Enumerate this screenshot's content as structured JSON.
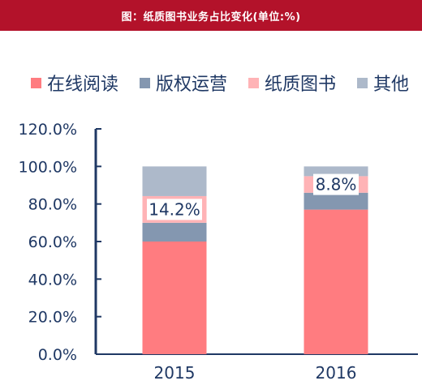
{
  "title": "图：纸质图书业务占比变化(单位:%)",
  "colors": {
    "title_bg": "#b3122a",
    "text": "#1f3864",
    "axis": "#1f3864",
    "label_box": "#ffffff"
  },
  "chart_data": {
    "type": "bar",
    "stacked": true,
    "title": "图：纸质图书业务占比变化(单位:%)",
    "xlabel": "",
    "ylabel": "",
    "categories": [
      "2015",
      "2016"
    ],
    "ylim": [
      0,
      120
    ],
    "yticks": [
      "0.0%",
      "20.0%",
      "40.0%",
      "60.0%",
      "80.0%",
      "100.0%",
      "120.0%"
    ],
    "legend_position": "top",
    "grid": false,
    "series": [
      {
        "name": "在线阅读",
        "color": "#ff7c80",
        "values": [
          60.0,
          77.0
        ]
      },
      {
        "name": "版权运营",
        "color": "#8497b0",
        "values": [
          10.0,
          9.0
        ]
      },
      {
        "name": "纸质图书",
        "color": "#ffb3b6",
        "values": [
          14.2,
          8.8
        ]
      },
      {
        "name": "其他",
        "color": "#adb9ca",
        "values": [
          15.8,
          5.2
        ]
      }
    ],
    "data_labels": [
      {
        "series": "纸质图书",
        "category": "2015",
        "text": "14.2%"
      },
      {
        "series": "纸质图书",
        "category": "2016",
        "text": "8.8%"
      }
    ]
  }
}
